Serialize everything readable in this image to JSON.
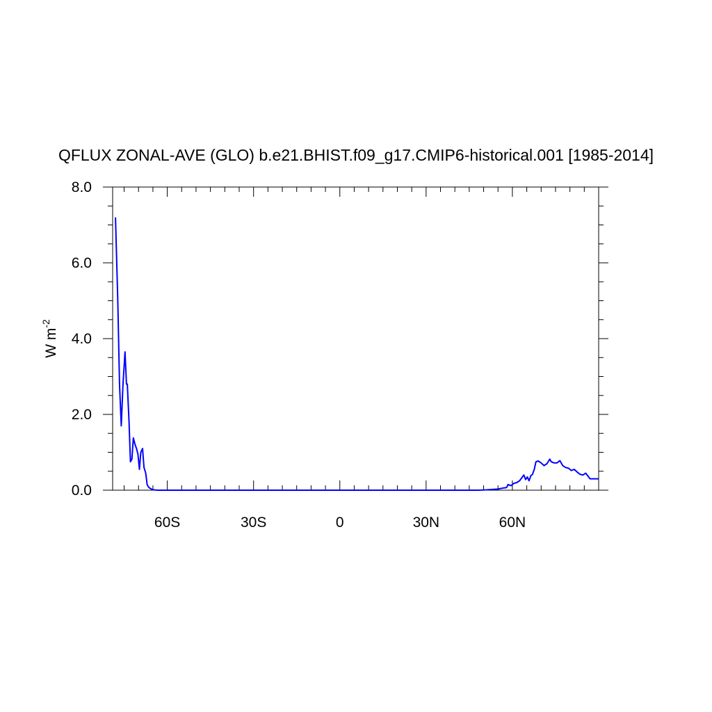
{
  "chart_data": {
    "type": "line",
    "title": "QFLUX ZONAL-AVE (GLO) b.e21.BHIST.f09_g17.CMIP6-historical.001 [1985-2014]",
    "xlabel": "",
    "ylabel_base": "W m",
    "ylabel_exponent": "-2",
    "xlim": [
      -79,
      90
    ],
    "ylim": [
      0,
      8
    ],
    "x_ticks": [
      {
        "value": -60,
        "label": "60S"
      },
      {
        "value": -30,
        "label": "30S"
      },
      {
        "value": 0,
        "label": "0"
      },
      {
        "value": 30,
        "label": "30N"
      },
      {
        "value": 60,
        "label": "60N"
      }
    ],
    "y_ticks": [
      {
        "value": 0,
        "label": "0.0"
      },
      {
        "value": 2,
        "label": "2.0"
      },
      {
        "value": 4,
        "label": "4.0"
      },
      {
        "value": 6,
        "label": "6.0"
      },
      {
        "value": 8,
        "label": "8.0"
      }
    ],
    "line_color": "#0000ff",
    "grid": false,
    "series": [
      {
        "x": [
          -78.0,
          -77.2,
          -76.6,
          -76.0,
          -75.4,
          -74.7,
          -74.2,
          -73.9,
          -73.3,
          -72.8,
          -72.3,
          -71.8,
          -71.2,
          -70.7,
          -70.2,
          -69.7,
          -69.2,
          -68.6,
          -68.1,
          -67.5,
          -67.0,
          -66.5,
          -66.0,
          -65.5,
          -64.6,
          -63.5,
          -62.0,
          -60.0,
          -55.0,
          -40.0,
          -20.0,
          0.0,
          20.0,
          40.0,
          48.0,
          51.0,
          53.0,
          55.0,
          57.0,
          58.0,
          58.5,
          59.5,
          60.5,
          61.5,
          62.5,
          63.5,
          64.0,
          64.6,
          65.2,
          65.8,
          66.4,
          67.0,
          67.6,
          68.2,
          69.0,
          70.0,
          71.0,
          72.0,
          73.0,
          73.5,
          74.5,
          75.5,
          76.5,
          77.5,
          78.5,
          79.5,
          80.5,
          81.5,
          82.5,
          83.5,
          84.5,
          85.5,
          87.0,
          89.0,
          90.0
        ],
        "y": [
          7.2,
          5.0,
          2.8,
          1.7,
          2.8,
          3.65,
          2.8,
          2.8,
          1.8,
          0.75,
          0.82,
          1.38,
          1.2,
          1.1,
          0.95,
          0.55,
          1.0,
          1.1,
          0.6,
          0.45,
          0.15,
          0.08,
          0.05,
          0.03,
          0.01,
          0.0,
          0.0,
          0.0,
          0.0,
          0.0,
          0.0,
          0.0,
          0.0,
          0.0,
          0.0,
          0.01,
          0.02,
          0.03,
          0.06,
          0.07,
          0.15,
          0.12,
          0.18,
          0.2,
          0.25,
          0.35,
          0.4,
          0.28,
          0.35,
          0.25,
          0.38,
          0.42,
          0.55,
          0.75,
          0.77,
          0.72,
          0.65,
          0.7,
          0.82,
          0.75,
          0.72,
          0.72,
          0.78,
          0.65,
          0.6,
          0.58,
          0.52,
          0.55,
          0.48,
          0.42,
          0.4,
          0.45,
          0.3,
          0.3,
          0.3
        ]
      }
    ]
  }
}
